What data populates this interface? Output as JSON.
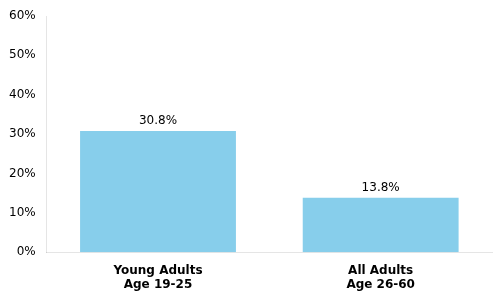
{
  "chart_data": {
    "type": "bar",
    "categories": [
      "Young Adults\nAge 19-25",
      "All Adults\nAge 26-60"
    ],
    "values": [
      0.308,
      0.138
    ],
    "value_labels": [
      "30.8%",
      "13.8%"
    ],
    "data_labels": true,
    "color": "#87CEEB",
    "ylim": [
      0,
      0.6
    ],
    "yticks": [
      {
        "value": 0.0,
        "label": "0%"
      },
      {
        "value": 0.1,
        "label": "10%"
      },
      {
        "value": 0.2,
        "label": "20%"
      },
      {
        "value": 0.3,
        "label": "30%"
      },
      {
        "value": 0.4,
        "label": "40%"
      },
      {
        "value": 0.5,
        "label": "50%"
      },
      {
        "value": 0.6,
        "label": "60%"
      }
    ],
    "grid": false
  }
}
